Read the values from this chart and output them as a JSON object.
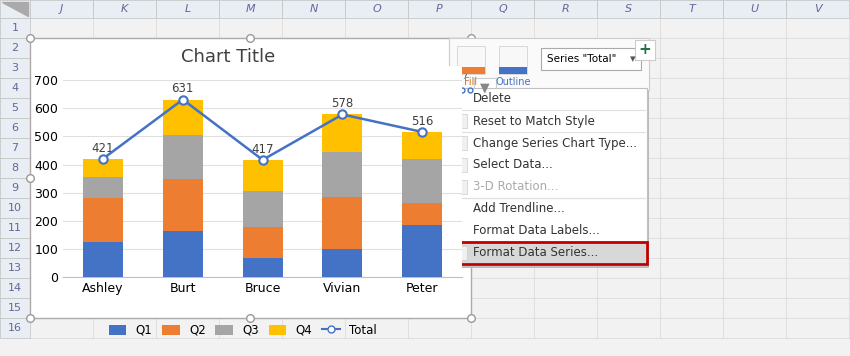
{
  "categories": [
    "Ashley",
    "Burt",
    "Bruce",
    "Vivian",
    "Peter"
  ],
  "q1": [
    125,
    165,
    70,
    100,
    185
  ],
  "q2": [
    155,
    185,
    110,
    185,
    80
  ],
  "q3": [
    75,
    155,
    125,
    160,
    155
  ],
  "q4": [
    66,
    126,
    112,
    133,
    96
  ],
  "totals": [
    421,
    631,
    417,
    578,
    516
  ],
  "title": "Chart Title",
  "bar_width": 0.5,
  "colors": {
    "Q1": "#4472C4",
    "Q2": "#ED7D31",
    "Q3": "#A5A5A5",
    "Q4": "#FFC000",
    "Total": "#4472C4"
  },
  "ylim": [
    0,
    750
  ],
  "yticks": [
    0,
    100,
    200,
    300,
    400,
    500,
    600,
    700
  ],
  "excel_col_headers": [
    "J",
    "K",
    "L",
    "M",
    "N",
    "O",
    "P",
    "Q",
    "R",
    "S",
    "T",
    "U",
    "V"
  ],
  "excel_row_numbers": [
    "1",
    "2",
    "3",
    "4",
    "5",
    "6",
    "7",
    "8",
    "9",
    "10",
    "11",
    "12",
    "13",
    "14",
    "15",
    "16"
  ],
  "context_menu_items": [
    "Delete",
    "Reset to Match Style",
    "Change Series Chart Type...",
    "Select Data...",
    "3-D Rotation...",
    "Add Trendline...",
    "Format Data Labels...",
    "Format Data Series..."
  ],
  "highlighted_item": "Format Data Series...",
  "gray_items": [
    "3-D Rotation..."
  ],
  "separator_before": [
    "Reset to Match Style",
    "Change Series Chart Type...",
    "Add Trendline..."
  ],
  "separator_after": [
    "3-D Rotation..."
  ],
  "icons_for": [
    "Reset to Match Style",
    "Change Series Chart Type...",
    "Select Data...",
    "3-D Rotation...",
    "Format Data Series..."
  ],
  "excel_bg": "#F2F2F2",
  "col_header_bg": "#E9EEF4",
  "col_header_fg": "#666699",
  "row_header_bg": "#E9EEF4",
  "row_header_fg": "#666699",
  "grid_color": "#D9D9D9",
  "chart_border": "#AEAAAA"
}
